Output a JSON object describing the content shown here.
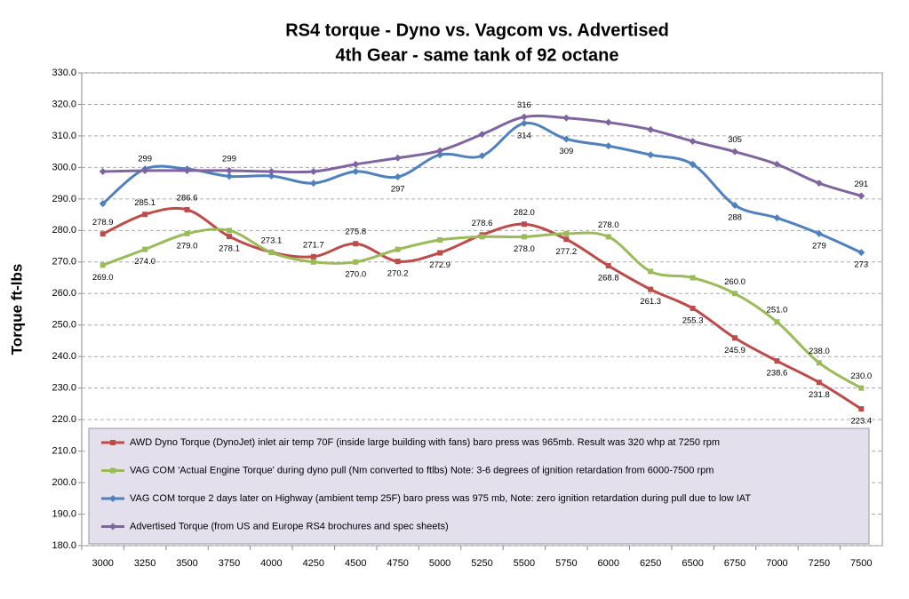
{
  "chart_data": {
    "type": "line",
    "title": "RS4 torque - Dyno vs. Vagcom vs. Advertised",
    "subtitle": "4th Gear - same tank of 92 octane",
    "y_label": "Torque   ft-lbs",
    "categories": [
      "3000",
      "3250",
      "3500",
      "3750",
      "4000",
      "4250",
      "4500",
      "4750",
      "5000",
      "5250",
      "5500",
      "5750",
      "6000",
      "6250",
      "6500",
      "6750",
      "7000",
      "7250",
      "7500"
    ],
    "ylim": [
      180,
      330
    ],
    "yticks": [
      {
        "value": 180,
        "label": "180.0"
      },
      {
        "value": 190,
        "label": "190.0"
      },
      {
        "value": 200,
        "label": "200.0"
      },
      {
        "value": 210,
        "label": "210.0"
      },
      {
        "value": 220,
        "label": "220.0"
      },
      {
        "value": 230,
        "label": "230.0"
      },
      {
        "value": 240,
        "label": "240.0"
      },
      {
        "value": 250,
        "label": "250.0"
      },
      {
        "value": 260,
        "label": "260.0"
      },
      {
        "value": 270,
        "label": "270.0"
      },
      {
        "value": 280,
        "label": "280.0"
      },
      {
        "value": 290,
        "label": "290.0"
      },
      {
        "value": 300,
        "label": "300.0"
      },
      {
        "value": 310,
        "label": "310.0"
      },
      {
        "value": 320,
        "label": "320.0"
      },
      {
        "value": 330,
        "label": "330.0"
      }
    ],
    "grid": true,
    "legend": "lower left",
    "series": [
      {
        "name": "AWD Dyno Torque (DynoJet) inlet air temp 70F (inside large building with fans) baro press was 965mb. Result was 320 whp at 7250 rpm",
        "color": "#be4b48",
        "values": [
          278.9,
          285.1,
          286.6,
          278.1,
          273.1,
          271.7,
          275.8,
          270.2,
          272.9,
          278.6,
          282.0,
          277.2,
          268.8,
          261.3,
          255.3,
          245.9,
          238.6,
          231.8,
          223.4
        ],
        "value_labels": [
          "278.9",
          "285.1",
          "286.6",
          "278.1",
          "273.1",
          "271.7",
          "275.8",
          "270.2",
          "272.9",
          "278.6",
          "282.0",
          "277.2",
          "268.8",
          "261.3",
          "255.3",
          "245.9",
          "238.6",
          "231.8",
          "223.4"
        ]
      },
      {
        "name": "VAG COM 'Actual Engine Torque' during dyno pull (Nm converted to ftlbs) Note: 3-6 degrees of ignition retardation from 6000-7500 rpm",
        "color": "#9bbb59",
        "values": [
          269.0,
          274.0,
          279.0,
          280.0,
          273.0,
          270.0,
          270.0,
          274.0,
          277.0,
          278.0,
          278.0,
          279.0,
          278.0,
          267.0,
          265.0,
          260.0,
          251.0,
          238.0,
          230.0
        ],
        "value_labels": [
          "269.0",
          "274.0",
          "279.0",
          null,
          null,
          null,
          "270.0",
          null,
          null,
          null,
          "278.0",
          null,
          "278.0",
          null,
          null,
          "260.0",
          "251.0",
          "238.0",
          "230.0"
        ]
      },
      {
        "name": "VAG COM torque 2 days later on Highway (ambient temp 25F) baro press was 975 mb, Note: zero ignition retardation during pull due to low IAT",
        "color": "#4f81bd",
        "values": [
          288.5,
          299.5,
          299.5,
          297.2,
          297.3,
          295.0,
          298.7,
          297,
          304.0,
          303.7,
          314,
          309,
          306.8,
          304.0,
          301.0,
          288,
          284.0,
          279,
          273
        ],
        "value_labels": [
          null,
          null,
          null,
          null,
          null,
          null,
          null,
          "297",
          null,
          null,
          "314",
          "309",
          null,
          null,
          null,
          "288",
          null,
          "279",
          "273"
        ]
      },
      {
        "name": "Advertised Torque (from US and Europe RS4 brochures and spec sheets)",
        "color": "#8064a2",
        "values": [
          298.7,
          299,
          299.0,
          299,
          298.7,
          298.7,
          301.0,
          303.0,
          305.3,
          310.5,
          316,
          315.7,
          314.3,
          312.0,
          308.3,
          305,
          301.0,
          295.0,
          291
        ],
        "value_labels": [
          null,
          "299",
          null,
          "299",
          null,
          null,
          null,
          null,
          null,
          null,
          "316",
          null,
          null,
          null,
          null,
          "305",
          null,
          null,
          "291"
        ]
      }
    ]
  }
}
